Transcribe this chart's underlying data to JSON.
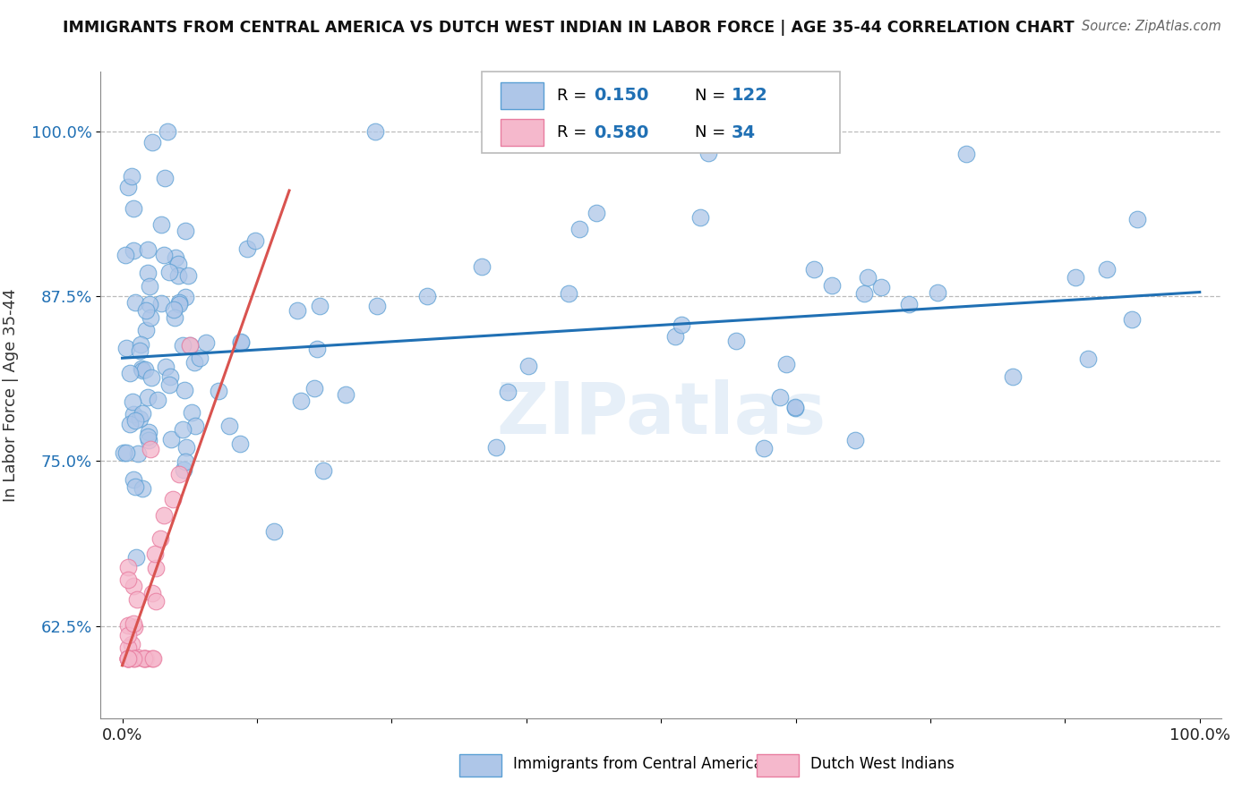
{
  "title": "IMMIGRANTS FROM CENTRAL AMERICA VS DUTCH WEST INDIAN IN LABOR FORCE | AGE 35-44 CORRELATION CHART",
  "source": "Source: ZipAtlas.com",
  "ylabel": "In Labor Force | Age 35-44",
  "xlim": [
    -0.02,
    1.02
  ],
  "ylim": [
    0.555,
    1.045
  ],
  "yticks": [
    0.625,
    0.75,
    0.875,
    1.0
  ],
  "ytick_labels": [
    "62.5%",
    "75.0%",
    "87.5%",
    "100.0%"
  ],
  "xtick_positions": [
    0.0,
    0.125,
    0.25,
    0.375,
    0.5,
    0.625,
    0.75,
    0.875,
    1.0
  ],
  "xtick_labels": [
    "0.0%",
    "",
    "",
    "",
    "",
    "",
    "",
    "",
    "100.0%"
  ],
  "blue_R": 0.15,
  "blue_N": 122,
  "pink_R": 0.58,
  "pink_N": 34,
  "blue_color": "#aec6e8",
  "pink_color": "#f5b8cc",
  "blue_edge_color": "#5a9fd4",
  "pink_edge_color": "#e87da0",
  "blue_line_color": "#2070b4",
  "pink_line_color": "#d9534f",
  "legend_label_blue": "Immigrants from Central America",
  "legend_label_pink": "Dutch West Indians",
  "watermark": "ZIPatlas",
  "background_color": "#ffffff",
  "grid_color": "#bbbbbb",
  "title_color": "#111111",
  "blue_trend_x": [
    0.0,
    1.0
  ],
  "blue_trend_y": [
    0.828,
    0.878
  ],
  "pink_trend_x": [
    0.0,
    0.155
  ],
  "pink_trend_y": [
    0.595,
    0.955
  ]
}
